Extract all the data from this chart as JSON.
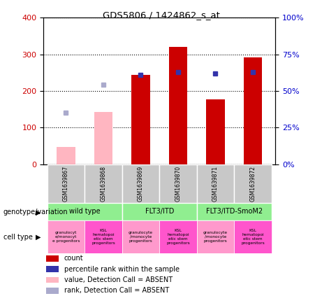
{
  "title": "GDS5806 / 1424862_s_at",
  "samples": [
    "GSM1639867",
    "GSM1639868",
    "GSM1639869",
    "GSM1639870",
    "GSM1639871",
    "GSM1639872"
  ],
  "count_values": [
    null,
    null,
    245,
    320,
    178,
    292
  ],
  "percentile_values": [
    null,
    null,
    61,
    63,
    62,
    63
  ],
  "absent_value_values": [
    47,
    143,
    null,
    null,
    null,
    null
  ],
  "absent_rank_values": [
    140,
    218,
    null,
    null,
    null,
    null
  ],
  "ylim_left": [
    0,
    400
  ],
  "ylim_right": [
    0,
    100
  ],
  "yticks_left": [
    0,
    100,
    200,
    300,
    400
  ],
  "ytick_labels_left": [
    "0",
    "100",
    "200",
    "300",
    "400"
  ],
  "yticks_right": [
    0,
    25,
    50,
    75,
    100
  ],
  "ytick_labels_right": [
    "0%",
    "25%",
    "50%",
    "75%",
    "100%"
  ],
  "color_count": "#CC0000",
  "color_percentile": "#3333AA",
  "color_absent_value": "#FFB6C1",
  "color_absent_rank": "#AAAACC",
  "bar_width": 0.5,
  "sample_label_bg": "#C8C8C8",
  "geno_color": "#90EE90",
  "cell_color_granu": "#FF99CC",
  "cell_color_ksl": "#FF55CC",
  "geno_labels": [
    "wild type",
    "FLT3/ITD",
    "FLT3/ITD-SmoM2"
  ],
  "geno_ranges": [
    [
      0,
      1
    ],
    [
      2,
      3
    ],
    [
      4,
      5
    ]
  ],
  "cell_labels": [
    "granulocyt\ne/monocyt\ne progenitors",
    "KSL\nhematopoi\netic stem\nprogenitors",
    "granulocyte\n/monocyte\nprogenitors",
    "KSL\nhematopoi\netic stem\nprogenitors",
    "granulocyte\n/monocyte\nprogenitors",
    "KSL\nhematopoi\netic stem\nprogenitors"
  ],
  "cell_colors": [
    "#FF99CC",
    "#FF55CC",
    "#FF99CC",
    "#FF55CC",
    "#FF99CC",
    "#FF55CC"
  ],
  "legend_items": [
    [
      "#CC0000",
      "count"
    ],
    [
      "#3333AA",
      "percentile rank within the sample"
    ],
    [
      "#FFB6C1",
      "value, Detection Call = ABSENT"
    ],
    [
      "#AAAACC",
      "rank, Detection Call = ABSENT"
    ]
  ]
}
